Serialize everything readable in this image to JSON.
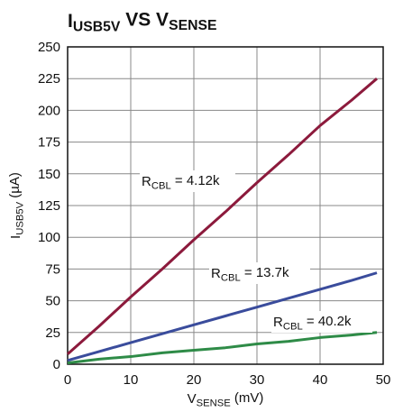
{
  "chart_data": {
    "type": "line",
    "title": [
      "I",
      "USB5V",
      " VS V",
      "SENSE"
    ],
    "xlabel": [
      "V",
      "SENSE",
      " (mV)"
    ],
    "ylabel": [
      "I",
      "USB5V",
      " (µA)"
    ],
    "x": [
      0,
      5,
      10,
      15,
      20,
      25,
      30,
      35,
      40,
      45,
      49
    ],
    "series": [
      {
        "name": [
          "R",
          "CBL",
          " = 4.12k"
        ],
        "color": "#8c1a3c",
        "values": [
          8,
          30,
          53,
          75,
          98,
          120,
          143,
          165,
          188,
          208,
          225
        ]
      },
      {
        "name": [
          "R",
          "CBL",
          " = 13.7k"
        ],
        "color": "#3a4c9c",
        "values": [
          3,
          10,
          17,
          24,
          31,
          38,
          45,
          52,
          59,
          66,
          72
        ]
      },
      {
        "name": [
          "R",
          "CBL",
          " = 40.2k"
        ],
        "color": "#2e8b47",
        "values": [
          1,
          4,
          6,
          9,
          11,
          13,
          16,
          18,
          21,
          23,
          25
        ]
      }
    ],
    "xlim": [
      0,
      50
    ],
    "xticks": [
      0,
      10,
      20,
      30,
      40,
      50
    ],
    "ylim": [
      0,
      250
    ],
    "yticks": [
      0,
      25,
      50,
      75,
      100,
      125,
      150,
      175,
      200,
      225,
      250
    ],
    "grid": true
  }
}
